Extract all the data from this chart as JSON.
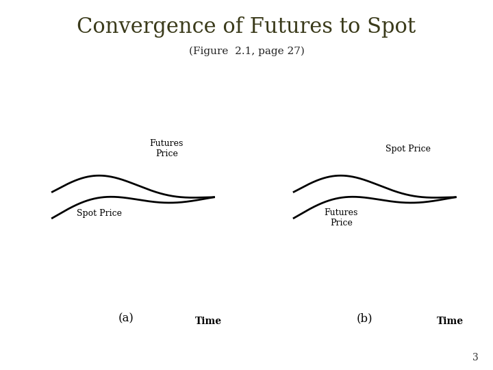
{
  "title": "Convergence of Futures to Spot",
  "subtitle": "(Figure  2.1, page 27)",
  "title_color": "#3a3a1a",
  "subtitle_color": "#222222",
  "background_color": "#ffffff",
  "label_a": "(a)",
  "label_b": "(b)",
  "time_label": "Time",
  "futures_price_label": "Futures\nPrice",
  "spot_price_label": "Spot Price",
  "page_number": "3",
  "title_fontsize": 22,
  "subtitle_fontsize": 11,
  "curve_label_fontsize": 9,
  "time_fontsize": 10,
  "ab_label_fontsize": 12
}
